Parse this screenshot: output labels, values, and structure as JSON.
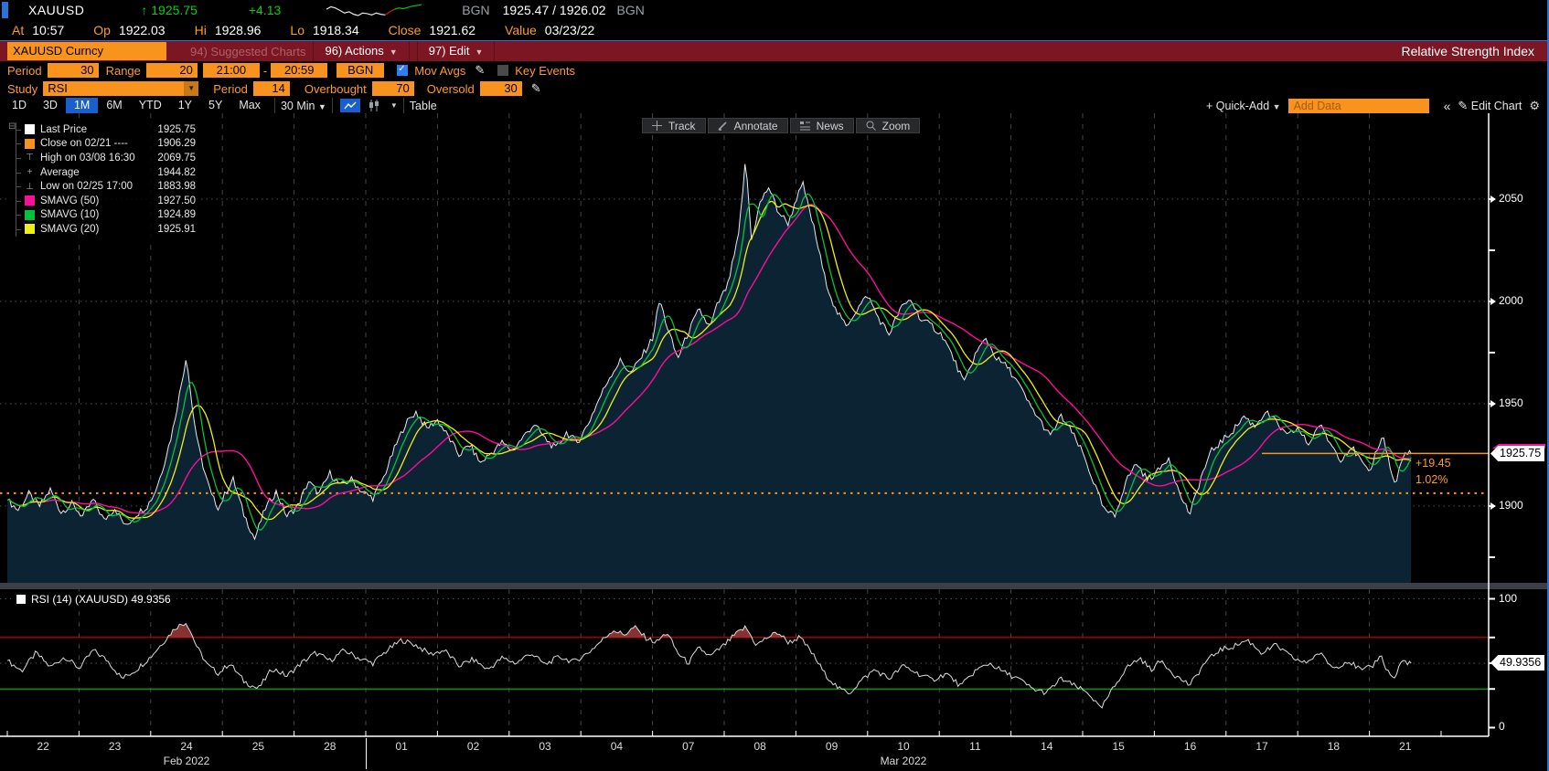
{
  "header": {
    "ticker": "XAUUSD",
    "arrow": "↑",
    "last": "1925.75",
    "change": "+4.13",
    "bid_source": "BGN",
    "bid_ask": "1925.47 / 1926.02",
    "ask_source": "BGN",
    "row2": [
      {
        "label": "At",
        "value": "10:57"
      },
      {
        "label": "Op",
        "value": "1922.03"
      },
      {
        "label": "Hi",
        "value": "1928.96"
      },
      {
        "label": "Lo",
        "value": "1918.34"
      },
      {
        "label": "Close",
        "value": "1921.62"
      },
      {
        "label": "Value",
        "value": "03/23/22"
      }
    ]
  },
  "command_bar": {
    "security": "XAUUSD Curncy",
    "suggested": "94) Suggested Charts",
    "actions": "96) Actions",
    "edit": "97) Edit",
    "title": "Relative Strength Index"
  },
  "settings_bar": {
    "period_label": "Period",
    "period": "30",
    "range_label": "Range",
    "range": "20",
    "time_from": "21:00",
    "dash": "-",
    "time_to": "20:59",
    "source": "BGN",
    "mov_avgs_label": "Mov Avgs",
    "key_events_label": "Key Events"
  },
  "study_bar": {
    "study_label": "Study",
    "study": "RSI",
    "period_label": "Period",
    "period": "14",
    "overbought_label": "Overbought",
    "overbought": "70",
    "oversold_label": "Oversold",
    "oversold": "30"
  },
  "range_bar": {
    "ranges": [
      "1D",
      "3D",
      "1M",
      "6M",
      "YTD",
      "1Y",
      "5Y",
      "Max"
    ],
    "active": "1M",
    "interval": "30 Min",
    "table_label": "Table",
    "quick_add": "+ Quick-Add",
    "add_data_placeholder": "Add Data",
    "collapse": "«",
    "edit_chart": "Edit Chart"
  },
  "chart_toolbar": {
    "track": "Track",
    "annotate": "Annotate",
    "news": "News",
    "zoom": "Zoom"
  },
  "legend": [
    {
      "swatch": "#ffffff",
      "label": "Last Price",
      "value": "1925.75"
    },
    {
      "swatch": "#f8941e",
      "label": "Close on 02/21 ----",
      "value": "1906.29"
    },
    {
      "glyph": "⊤",
      "label": "High on 03/08 16:30",
      "value": "2069.75"
    },
    {
      "glyph": "+",
      "label": "Average",
      "value": "1944.82"
    },
    {
      "glyph": "⊥",
      "label": "Low on 02/25 17:00",
      "value": "1883.98"
    },
    {
      "swatch": "#ff0d9a",
      "label": "SMAVG (50)",
      "value": "1927.50"
    },
    {
      "swatch": "#00c33c",
      "label": "SMAVG (10)",
      "value": "1924.89"
    },
    {
      "swatch": "#f0f00e",
      "label": "SMAVG (20)",
      "value": "1925.91"
    }
  ],
  "rsi_label": "RSI (14) (XAUUSD) 49.9356",
  "y_axis": {
    "price_ticks": [
      "1900",
      "1950",
      "2000",
      "2050"
    ],
    "price_tick_values": [
      1900,
      1950,
      2000,
      2050
    ],
    "price_minor_ticks": [
      1875,
      1975,
      2025
    ],
    "last_price_tag": "1925.75",
    "change_tag": "+19.45",
    "pct_tag": "1.02%",
    "rsi_top": "100",
    "rsi_bottom": "0",
    "rsi_tag": "49.9356"
  },
  "x_axis": {
    "days": [
      "22",
      "23",
      "24",
      "25",
      "28",
      "01",
      "02",
      "03",
      "04",
      "07",
      "08",
      "09",
      "10",
      "11",
      "14",
      "15",
      "16",
      "17",
      "18",
      "21"
    ],
    "feb_label": "Feb 2022",
    "feb_index": 2,
    "mar_label": "Mar 2022",
    "mar_index": 12,
    "month_boundary_index": 5
  },
  "colors": {
    "amber": "#f8941e",
    "amber_text": "#ff9b23",
    "up_green": "#00d404",
    "price_line": "#e9e9e9",
    "area_fill": "#0c2334",
    "smavg50": "#ff0d9a",
    "smavg10": "#00c33c",
    "smavg20": "#f0f00e",
    "rsi_line": "#dcdcdc",
    "overbought_line": "#d40000",
    "oversold_line": "#00c000",
    "overbought_fill": "#9e3b3b",
    "grid": "#4c525a",
    "vgrid": "#3f454d",
    "selected_blue": "#1a5fd0",
    "window_blue": "#2f6fd8",
    "divider": "#3c4046"
  },
  "chart_data": [
    {
      "type": "line",
      "name": "XAUUSD last price, 30-min intraday, Feb 22 - Mar 21 2022",
      "x_unit": "session-day index (Feb 22 = 0 ... Mar 21 = 19, session 21:00-20:59)",
      "x_range": [
        0,
        19.58
      ],
      "ylim": [
        1862,
        2093
      ],
      "yticks": [
        1900,
        1950,
        2000,
        2050
      ],
      "last": 1925.75,
      "prev_close": 1906.29,
      "high": 2069.75,
      "high_time": "03/08 16:30",
      "low": 1883.98,
      "low_time": "02/25 17:00",
      "average": 1944.82,
      "smavg_windows_bars": {
        "magenta": 50,
        "green": 10,
        "yellow": 20
      },
      "points": [
        [
          0.0,
          1903
        ],
        [
          0.15,
          1898
        ],
        [
          0.3,
          1906
        ],
        [
          0.45,
          1900
        ],
        [
          0.6,
          1908
        ],
        [
          0.75,
          1897
        ],
        [
          0.9,
          1901
        ],
        [
          1.05,
          1895
        ],
        [
          1.2,
          1903
        ],
        [
          1.35,
          1893
        ],
        [
          1.5,
          1899
        ],
        [
          1.65,
          1890
        ],
        [
          1.8,
          1896
        ],
        [
          1.95,
          1900
        ],
        [
          2.05,
          1906
        ],
        [
          2.15,
          1916
        ],
        [
          2.3,
          1936
        ],
        [
          2.42,
          1958
        ],
        [
          2.5,
          1974
        ],
        [
          2.58,
          1948
        ],
        [
          2.66,
          1930
        ],
        [
          2.75,
          1917
        ],
        [
          2.85,
          1905
        ],
        [
          2.95,
          1899
        ],
        [
          3.05,
          1907
        ],
        [
          3.15,
          1913
        ],
        [
          3.3,
          1896
        ],
        [
          3.45,
          1884
        ],
        [
          3.6,
          1899
        ],
        [
          3.75,
          1907
        ],
        [
          3.9,
          1895
        ],
        [
          4.05,
          1900
        ],
        [
          4.2,
          1912
        ],
        [
          4.35,
          1906
        ],
        [
          4.5,
          1916
        ],
        [
          4.65,
          1910
        ],
        [
          4.8,
          1913
        ],
        [
          4.95,
          1907
        ],
        [
          5.1,
          1904
        ],
        [
          5.25,
          1914
        ],
        [
          5.4,
          1928
        ],
        [
          5.55,
          1940
        ],
        [
          5.7,
          1946
        ],
        [
          5.85,
          1938
        ],
        [
          6.0,
          1942
        ],
        [
          6.15,
          1934
        ],
        [
          6.3,
          1925
        ],
        [
          6.45,
          1930
        ],
        [
          6.6,
          1921
        ],
        [
          6.75,
          1926
        ],
        [
          6.9,
          1931
        ],
        [
          7.05,
          1927
        ],
        [
          7.2,
          1934
        ],
        [
          7.35,
          1940
        ],
        [
          7.5,
          1933
        ],
        [
          7.65,
          1928
        ],
        [
          7.8,
          1936
        ],
        [
          7.95,
          1931
        ],
        [
          8.1,
          1940
        ],
        [
          8.25,
          1952
        ],
        [
          8.4,
          1963
        ],
        [
          8.55,
          1971
        ],
        [
          8.7,
          1965
        ],
        [
          8.85,
          1973
        ],
        [
          9.0,
          1982
        ],
        [
          9.1,
          2001
        ],
        [
          9.2,
          1988
        ],
        [
          9.35,
          1972
        ],
        [
          9.5,
          1985
        ],
        [
          9.65,
          1996
        ],
        [
          9.8,
          1987
        ],
        [
          9.9,
          1998
        ],
        [
          10.05,
          2008
        ],
        [
          10.2,
          2032
        ],
        [
          10.3,
          2069.75
        ],
        [
          10.38,
          2030
        ],
        [
          10.5,
          2048
        ],
        [
          10.62,
          2056
        ],
        [
          10.75,
          2044
        ],
        [
          10.9,
          2038
        ],
        [
          11.0,
          2050
        ],
        [
          11.1,
          2057
        ],
        [
          11.25,
          2036
        ],
        [
          11.4,
          2012
        ],
        [
          11.55,
          1996
        ],
        [
          11.7,
          1988
        ],
        [
          11.85,
          1996
        ],
        [
          12.0,
          2003
        ],
        [
          12.15,
          1992
        ],
        [
          12.3,
          1984
        ],
        [
          12.45,
          1996
        ],
        [
          12.6,
          2001
        ],
        [
          12.75,
          1991
        ],
        [
          12.9,
          1988
        ],
        [
          13.05,
          1983
        ],
        [
          13.2,
          1972
        ],
        [
          13.35,
          1960
        ],
        [
          13.5,
          1974
        ],
        [
          13.65,
          1982
        ],
        [
          13.8,
          1972
        ],
        [
          13.95,
          1968
        ],
        [
          14.1,
          1960
        ],
        [
          14.25,
          1950
        ],
        [
          14.4,
          1942
        ],
        [
          14.55,
          1934
        ],
        [
          14.7,
          1944
        ],
        [
          14.85,
          1936
        ],
        [
          15.0,
          1926
        ],
        [
          15.15,
          1912
        ],
        [
          15.3,
          1898
        ],
        [
          15.45,
          1895
        ],
        [
          15.6,
          1912
        ],
        [
          15.75,
          1921
        ],
        [
          15.9,
          1913
        ],
        [
          16.05,
          1917
        ],
        [
          16.2,
          1924
        ],
        [
          16.35,
          1906
        ],
        [
          16.5,
          1896
        ],
        [
          16.65,
          1914
        ],
        [
          16.8,
          1927
        ],
        [
          16.95,
          1932
        ],
        [
          17.1,
          1937
        ],
        [
          17.25,
          1944
        ],
        [
          17.4,
          1939
        ],
        [
          17.55,
          1946
        ],
        [
          17.7,
          1941
        ],
        [
          17.85,
          1934
        ],
        [
          18.0,
          1938
        ],
        [
          18.15,
          1930
        ],
        [
          18.3,
          1940
        ],
        [
          18.45,
          1931
        ],
        [
          18.6,
          1923
        ],
        [
          18.75,
          1929
        ],
        [
          18.9,
          1921
        ],
        [
          19.0,
          1915
        ],
        [
          19.1,
          1928
        ],
        [
          19.2,
          1934
        ],
        [
          19.28,
          1920
        ],
        [
          19.36,
          1910
        ],
        [
          19.44,
          1921
        ],
        [
          19.52,
          1927
        ],
        [
          19.58,
          1925.75
        ]
      ]
    },
    {
      "type": "line",
      "name": "RSI (14) on XAUUSD",
      "ylim": [
        0,
        100
      ],
      "overbought": 70,
      "oversold": 30,
      "current": 49.9356,
      "points": [
        [
          0.0,
          52
        ],
        [
          0.2,
          44
        ],
        [
          0.4,
          58
        ],
        [
          0.6,
          47
        ],
        [
          0.8,
          55
        ],
        [
          1.0,
          46
        ],
        [
          1.2,
          60
        ],
        [
          1.4,
          52
        ],
        [
          1.6,
          38
        ],
        [
          1.8,
          45
        ],
        [
          2.0,
          55
        ],
        [
          2.2,
          68
        ],
        [
          2.35,
          78
        ],
        [
          2.5,
          82
        ],
        [
          2.65,
          62
        ],
        [
          2.8,
          48
        ],
        [
          2.95,
          42
        ],
        [
          3.1,
          50
        ],
        [
          3.3,
          36
        ],
        [
          3.5,
          30
        ],
        [
          3.7,
          46
        ],
        [
          3.9,
          40
        ],
        [
          4.1,
          50
        ],
        [
          4.3,
          58
        ],
        [
          4.5,
          52
        ],
        [
          4.7,
          60
        ],
        [
          4.9,
          54
        ],
        [
          5.1,
          50
        ],
        [
          5.3,
          60
        ],
        [
          5.5,
          68
        ],
        [
          5.7,
          64
        ],
        [
          5.9,
          57
        ],
        [
          6.1,
          60
        ],
        [
          6.3,
          48
        ],
        [
          6.5,
          53
        ],
        [
          6.7,
          45
        ],
        [
          6.9,
          54
        ],
        [
          7.1,
          50
        ],
        [
          7.3,
          58
        ],
        [
          7.5,
          49
        ],
        [
          7.7,
          55
        ],
        [
          7.9,
          51
        ],
        [
          8.1,
          58
        ],
        [
          8.3,
          68
        ],
        [
          8.45,
          76
        ],
        [
          8.6,
          72
        ],
        [
          8.75,
          78
        ],
        [
          8.9,
          70
        ],
        [
          9.05,
          66
        ],
        [
          9.2,
          74
        ],
        [
          9.35,
          58
        ],
        [
          9.5,
          50
        ],
        [
          9.65,
          62
        ],
        [
          9.8,
          55
        ],
        [
          10.0,
          64
        ],
        [
          10.15,
          72
        ],
        [
          10.3,
          78
        ],
        [
          10.45,
          64
        ],
        [
          10.6,
          70
        ],
        [
          10.75,
          74
        ],
        [
          10.9,
          66
        ],
        [
          11.05,
          70
        ],
        [
          11.2,
          60
        ],
        [
          11.4,
          42
        ],
        [
          11.6,
          30
        ],
        [
          11.75,
          27
        ],
        [
          11.9,
          36
        ],
        [
          12.1,
          45
        ],
        [
          12.3,
          38
        ],
        [
          12.5,
          48
        ],
        [
          12.7,
          42
        ],
        [
          12.9,
          37
        ],
        [
          13.1,
          42
        ],
        [
          13.3,
          32
        ],
        [
          13.5,
          44
        ],
        [
          13.7,
          50
        ],
        [
          13.9,
          43
        ],
        [
          14.1,
          38
        ],
        [
          14.3,
          30
        ],
        [
          14.5,
          27
        ],
        [
          14.7,
          38
        ],
        [
          14.9,
          32
        ],
        [
          15.1,
          26
        ],
        [
          15.25,
          14
        ],
        [
          15.4,
          28
        ],
        [
          15.6,
          46
        ],
        [
          15.8,
          54
        ],
        [
          15.95,
          45
        ],
        [
          16.1,
          52
        ],
        [
          16.3,
          40
        ],
        [
          16.5,
          33
        ],
        [
          16.7,
          50
        ],
        [
          16.9,
          60
        ],
        [
          17.1,
          63
        ],
        [
          17.3,
          68
        ],
        [
          17.5,
          58
        ],
        [
          17.7,
          64
        ],
        [
          17.9,
          55
        ],
        [
          18.1,
          50
        ],
        [
          18.3,
          58
        ],
        [
          18.5,
          46
        ],
        [
          18.7,
          52
        ],
        [
          18.9,
          44
        ],
        [
          19.05,
          48
        ],
        [
          19.15,
          57
        ],
        [
          19.25,
          44
        ],
        [
          19.35,
          38
        ],
        [
          19.45,
          52
        ],
        [
          19.58,
          49.94
        ]
      ]
    },
    {
      "type": "line",
      "name": "header sparkline (intraday last)",
      "values": [
        1922,
        1924,
        1923,
        1921,
        1919,
        1920,
        1918,
        1917,
        1919,
        1918.5,
        1917.5,
        1919,
        1918,
        1917.5,
        1920,
        1922,
        1923,
        1922.5,
        1923.5,
        1924.5,
        1925,
        1925.75
      ],
      "segments": [
        {
          "from": 0,
          "to": 13,
          "color": "#e8e8e8"
        },
        {
          "from": 13,
          "to": 15,
          "color": "#cc2222"
        },
        {
          "from": 15,
          "to": 21,
          "color": "#00c800"
        }
      ]
    }
  ]
}
